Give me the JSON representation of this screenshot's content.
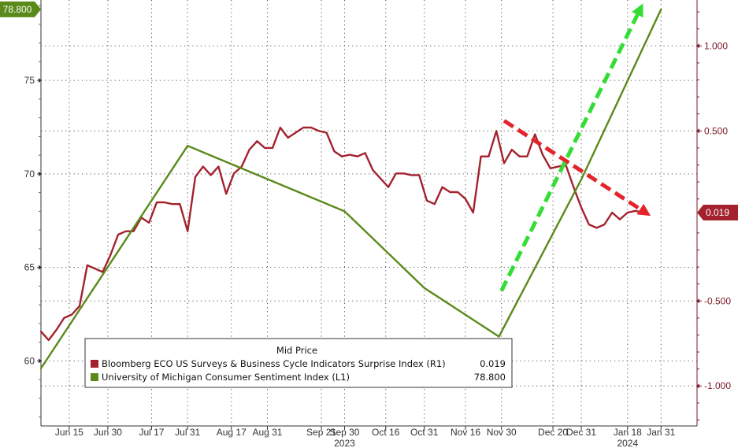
{
  "chart_data": {
    "type": "line",
    "xlabel": "",
    "ylabel": "",
    "x_ticks": [
      "Jun 15",
      "Jun 30",
      "Jul 17",
      "Jul 31",
      "Aug 17",
      "Aug 31",
      "Sep 21",
      "Sep 30",
      "Oct 16",
      "Oct 31",
      "Nov 16",
      "Nov 30",
      "Dec 20",
      "Dec 31",
      "Jan 18",
      "Jan 31"
    ],
    "x_tick_values": [
      "2023-06-15",
      "2023-06-30",
      "2023-07-17",
      "2023-07-31",
      "2023-08-17",
      "2023-08-31",
      "2023-09-21",
      "2023-09-30",
      "2023-10-16",
      "2023-10-31",
      "2023-11-16",
      "2023-11-30",
      "2023-12-20",
      "2023-12-31",
      "2024-01-18",
      "2024-01-31"
    ],
    "year_labels": [
      {
        "label": "2023",
        "date": "2023-09-30"
      },
      {
        "label": "2024",
        "date": "2024-01-18"
      }
    ],
    "xlim": [
      "2023-06-04",
      "2024-02-14"
    ],
    "left_axis": {
      "ticks": [
        60,
        65,
        70,
        75
      ],
      "ylim": [
        56.52,
        79.3
      ],
      "current_label": "78.800"
    },
    "right_axis": {
      "ticks": [
        "1.000",
        "0.500",
        "-0.500",
        "-1.000"
      ],
      "tick_values": [
        1.0,
        0.5,
        -0.5,
        -1.0
      ],
      "ylim": [
        -1.235,
        1.27
      ],
      "current_label": "0.019"
    },
    "grid": true,
    "legend": {
      "title": "Mid Price",
      "placement": "bottom-left",
      "entries": [
        {
          "label": "Bloomberg ECO US Surveys & Business Cycle Indicators Surprise Index  (R1)",
          "value": "0.019",
          "color": "#a3222e"
        },
        {
          "label": "University of Michigan Consumer Sentiment Index  (L1)",
          "value": "78.800",
          "color": "#5a8a1a"
        }
      ]
    },
    "series": [
      {
        "name": "Bloomberg ECO US Surveys & Business Cycle Indicators Surprise Index",
        "axis": "right",
        "color": "#a3222e",
        "x": [
          "2023-06-04",
          "2023-06-07",
          "2023-06-10",
          "2023-06-13",
          "2023-06-16",
          "2023-06-19",
          "2023-06-22",
          "2023-06-25",
          "2023-06-28",
          "2023-07-01",
          "2023-07-04",
          "2023-07-07",
          "2023-07-10",
          "2023-07-13",
          "2023-07-16",
          "2023-07-19",
          "2023-07-22",
          "2023-07-25",
          "2023-07-28",
          "2023-07-31",
          "2023-08-03",
          "2023-08-06",
          "2023-08-09",
          "2023-08-12",
          "2023-08-15",
          "2023-08-18",
          "2023-08-21",
          "2023-08-24",
          "2023-08-27",
          "2023-08-30",
          "2023-09-02",
          "2023-09-05",
          "2023-09-08",
          "2023-09-11",
          "2023-09-14",
          "2023-09-17",
          "2023-09-20",
          "2023-09-23",
          "2023-09-26",
          "2023-09-29",
          "2023-10-02",
          "2023-10-05",
          "2023-10-08",
          "2023-10-11",
          "2023-10-14",
          "2023-10-17",
          "2023-10-20",
          "2023-10-23",
          "2023-10-26",
          "2023-10-29",
          "2023-11-01",
          "2023-11-04",
          "2023-11-07",
          "2023-11-10",
          "2023-11-13",
          "2023-11-16",
          "2023-11-19",
          "2023-11-22",
          "2023-11-25",
          "2023-11-28",
          "2023-12-01",
          "2023-12-04",
          "2023-12-07",
          "2023-12-10",
          "2023-12-13",
          "2023-12-16",
          "2023-12-19",
          "2023-12-22",
          "2023-12-25",
          "2023-12-28",
          "2023-12-31",
          "2024-01-03",
          "2024-01-06",
          "2024-01-09",
          "2024-01-12",
          "2024-01-15",
          "2024-01-18",
          "2024-01-21",
          "2024-01-24"
        ],
        "values": [
          -0.68,
          -0.73,
          -0.67,
          -0.6,
          -0.58,
          -0.53,
          -0.29,
          -0.31,
          -0.33,
          -0.23,
          -0.11,
          -0.09,
          -0.09,
          -0.01,
          -0.04,
          0.08,
          0.08,
          0.07,
          0.07,
          -0.09,
          0.23,
          0.29,
          0.24,
          0.29,
          0.13,
          0.25,
          0.29,
          0.39,
          0.44,
          0.4,
          0.4,
          0.52,
          0.46,
          0.49,
          0.52,
          0.52,
          0.5,
          0.49,
          0.38,
          0.35,
          0.36,
          0.35,
          0.37,
          0.27,
          0.22,
          0.17,
          0.25,
          0.25,
          0.24,
          0.24,
          0.09,
          0.07,
          0.17,
          0.14,
          0.14,
          0.1,
          0.02,
          0.35,
          0.35,
          0.5,
          0.31,
          0.39,
          0.35,
          0.35,
          0.48,
          0.36,
          0.28,
          0.29,
          0.3,
          0.17,
          0.05,
          -0.05,
          -0.07,
          -0.05,
          0.02,
          -0.02,
          0.02,
          0.03,
          0.02
        ]
      },
      {
        "name": "University of Michigan Consumer Sentiment Index",
        "axis": "left",
        "color": "#5a8a1a",
        "x": [
          "2023-06-04",
          "2023-07-31",
          "2023-09-30",
          "2023-10-31",
          "2023-11-29",
          "2023-12-31",
          "2024-01-31"
        ],
        "values": [
          59.6,
          71.5,
          68.0,
          63.9,
          61.3,
          69.7,
          78.8
        ]
      }
    ],
    "annotations": [
      {
        "type": "dashed-arrow",
        "axis": "right",
        "color": "#e3242b",
        "from": {
          "x": "2023-12-01",
          "y": 0.56
        },
        "to": {
          "x": "2024-01-27",
          "y": 0.0
        }
      },
      {
        "type": "dashed-arrow",
        "axis": "right",
        "color": "#33dd33",
        "from": {
          "x": "2023-11-30",
          "y": -0.44
        },
        "to": {
          "x": "2024-01-24",
          "y": 1.25
        }
      }
    ]
  }
}
